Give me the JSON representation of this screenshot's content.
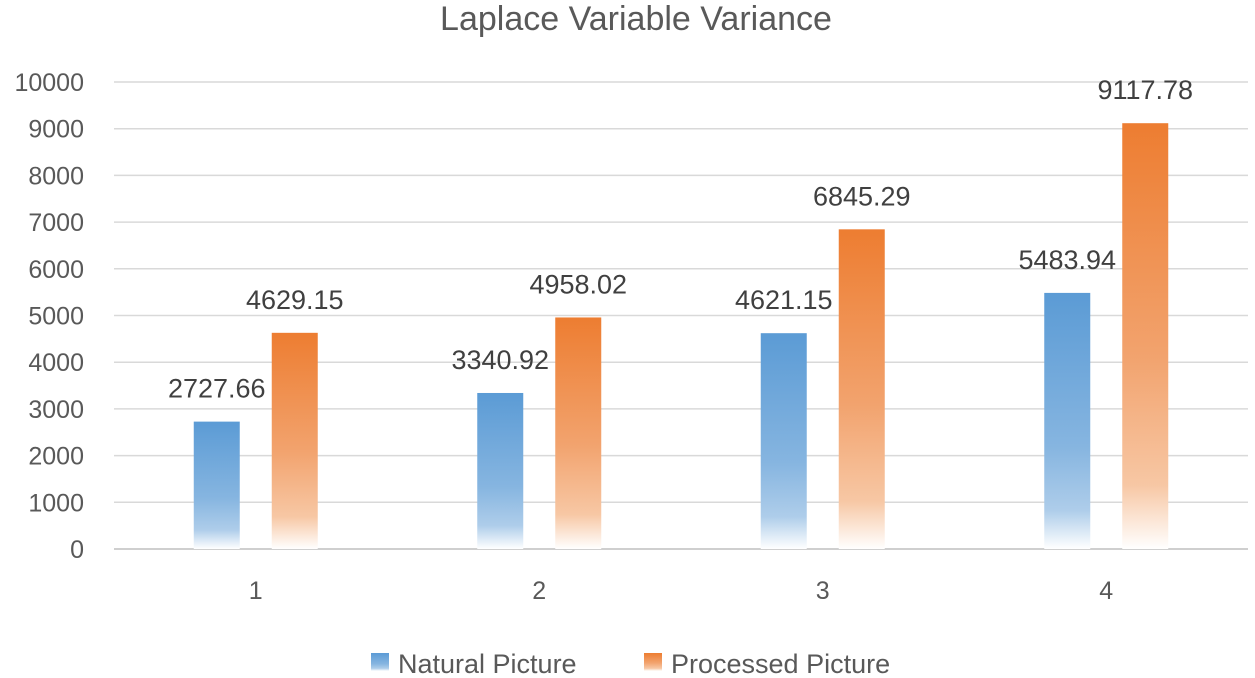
{
  "chart_data": {
    "type": "bar",
    "title": "Laplace Variable Variance",
    "xlabel": "",
    "ylabel": "",
    "categories": [
      "1",
      "2",
      "3",
      "4"
    ],
    "ylim": [
      0,
      10000
    ],
    "yticks": [
      0,
      1000,
      2000,
      3000,
      4000,
      5000,
      6000,
      7000,
      8000,
      9000,
      10000
    ],
    "grid": true,
    "legend_position": "bottom",
    "series": [
      {
        "name": "Natural Picture",
        "color": "#5b9bd5",
        "values": [
          2727.66,
          3340.92,
          4621.15,
          5483.94
        ],
        "labels": [
          "2727.66",
          "3340.92",
          "4621.15",
          "5483.94"
        ]
      },
      {
        "name": "Processed Picture",
        "color": "#ed7d31",
        "values": [
          4629.15,
          4958.02,
          6845.29,
          9117.78
        ],
        "labels": [
          "4629.15",
          "4958.02",
          "6845.29",
          "9117.78"
        ]
      }
    ]
  }
}
